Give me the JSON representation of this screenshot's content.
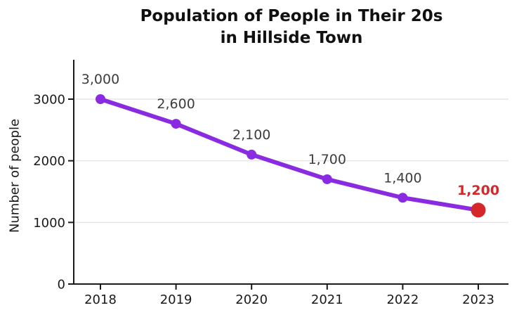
{
  "title": "Population of People in Their 20s\nin Hillside Town",
  "chart_data": {
    "type": "line",
    "x": [
      2018,
      2019,
      2020,
      2021,
      2022,
      2023
    ],
    "values": [
      3000,
      2600,
      2100,
      1700,
      1400,
      1200
    ],
    "point_labels": [
      "3,000",
      "2,600",
      "2,100",
      "1,700",
      "1,400",
      "1,200"
    ],
    "title": "Population of People in Their 20s in Hillside Town",
    "xlabel": "",
    "ylabel": "Number of people",
    "ylim": [
      0,
      3000
    ],
    "yticks": [
      0,
      1000,
      2000,
      3000
    ],
    "ytick_labels": [
      "0",
      "1000",
      "2000",
      "3000"
    ],
    "grid": "horizontal",
    "legend": "none",
    "colors": {
      "line": "#8a2be2",
      "marker": "#8a2be2",
      "highlight": "#d62728",
      "data_label": "#3d3d3d",
      "highlight_label": "#d62728",
      "axis": "#1a1a1a",
      "tick_label": "#1a1a1a",
      "grid": "#e6e6e6",
      "title": "#111111"
    },
    "highlight_index": 5
  }
}
